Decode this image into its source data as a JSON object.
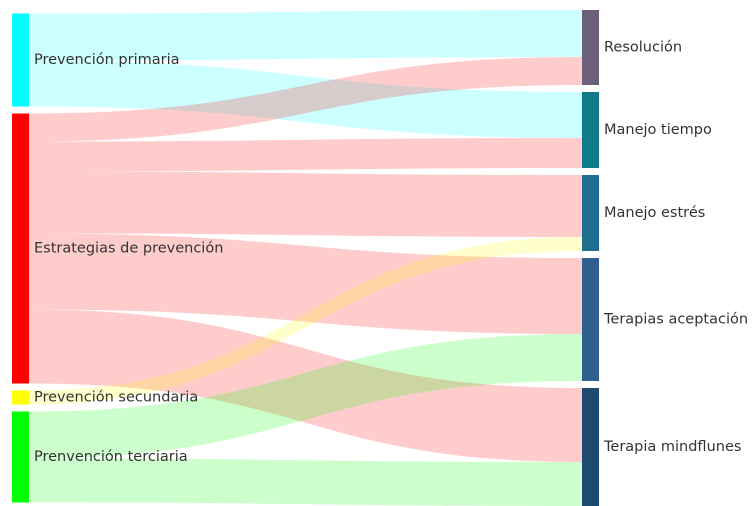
{
  "chart_data": {
    "type": "sankey",
    "nodes": [
      {
        "name": "Prevención primaria",
        "color": "#00ffff",
        "column": 0
      },
      {
        "name": "Estrategias de prevención",
        "color": "#ff0000",
        "column": 0
      },
      {
        "name": "Prevención secundaria",
        "color": "#ffff00",
        "column": 0
      },
      {
        "name": "Prenvención terciaria",
        "color": "#00ff00",
        "column": 0
      },
      {
        "name": "Resolución",
        "color": "#6b5f7a",
        "column": 1
      },
      {
        "name": "Manejo tiempo",
        "color": "#0e7a8a",
        "column": 1
      },
      {
        "name": "Manejo estrés",
        "color": "#1f6e8e",
        "column": 1
      },
      {
        "name": "Terapias aceptación",
        "color": "#2f5f8f",
        "column": 1
      },
      {
        "name": "Terapia mindflunes",
        "color": "#1d4a6e",
        "column": 1
      }
    ],
    "links": [
      {
        "source": 0,
        "target": 4,
        "value": 47
      },
      {
        "source": 0,
        "target": 5,
        "value": 46
      },
      {
        "source": 1,
        "target": 4,
        "value": 28
      },
      {
        "source": 1,
        "target": 5,
        "value": 30
      },
      {
        "source": 1,
        "target": 6,
        "value": 62
      },
      {
        "source": 1,
        "target": 7,
        "value": 76
      },
      {
        "source": 1,
        "target": 8,
        "value": 74
      },
      {
        "source": 2,
        "target": 6,
        "value": 14
      },
      {
        "source": 3,
        "target": 7,
        "value": 47
      },
      {
        "source": 3,
        "target": 8,
        "value": 44
      }
    ]
  }
}
